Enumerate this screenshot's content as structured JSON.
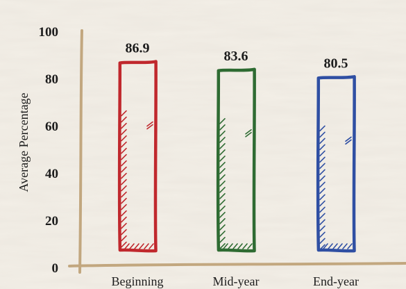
{
  "chart_data": {
    "type": "bar",
    "style": "hand-drawn sketch",
    "categories": [
      "Beginning",
      "Mid-year",
      "End-year"
    ],
    "values": [
      86.9,
      83.6,
      80.5
    ],
    "data_labels": [
      "86.9",
      "83.6",
      "80.5"
    ],
    "colors": [
      "#c0282d",
      "#2e6b32",
      "#2f4fa3"
    ],
    "axis_color": "#c2a77f",
    "background": "#f3efe7",
    "title": "",
    "xlabel": "",
    "ylabel": "Average Percentage",
    "ylim": [
      0,
      100
    ],
    "yticks": [
      0,
      20,
      40,
      60,
      80,
      100
    ],
    "ytick_labels": [
      "0",
      "20",
      "40",
      "60",
      "80",
      "100"
    ],
    "grid": false,
    "legend": "none"
  }
}
